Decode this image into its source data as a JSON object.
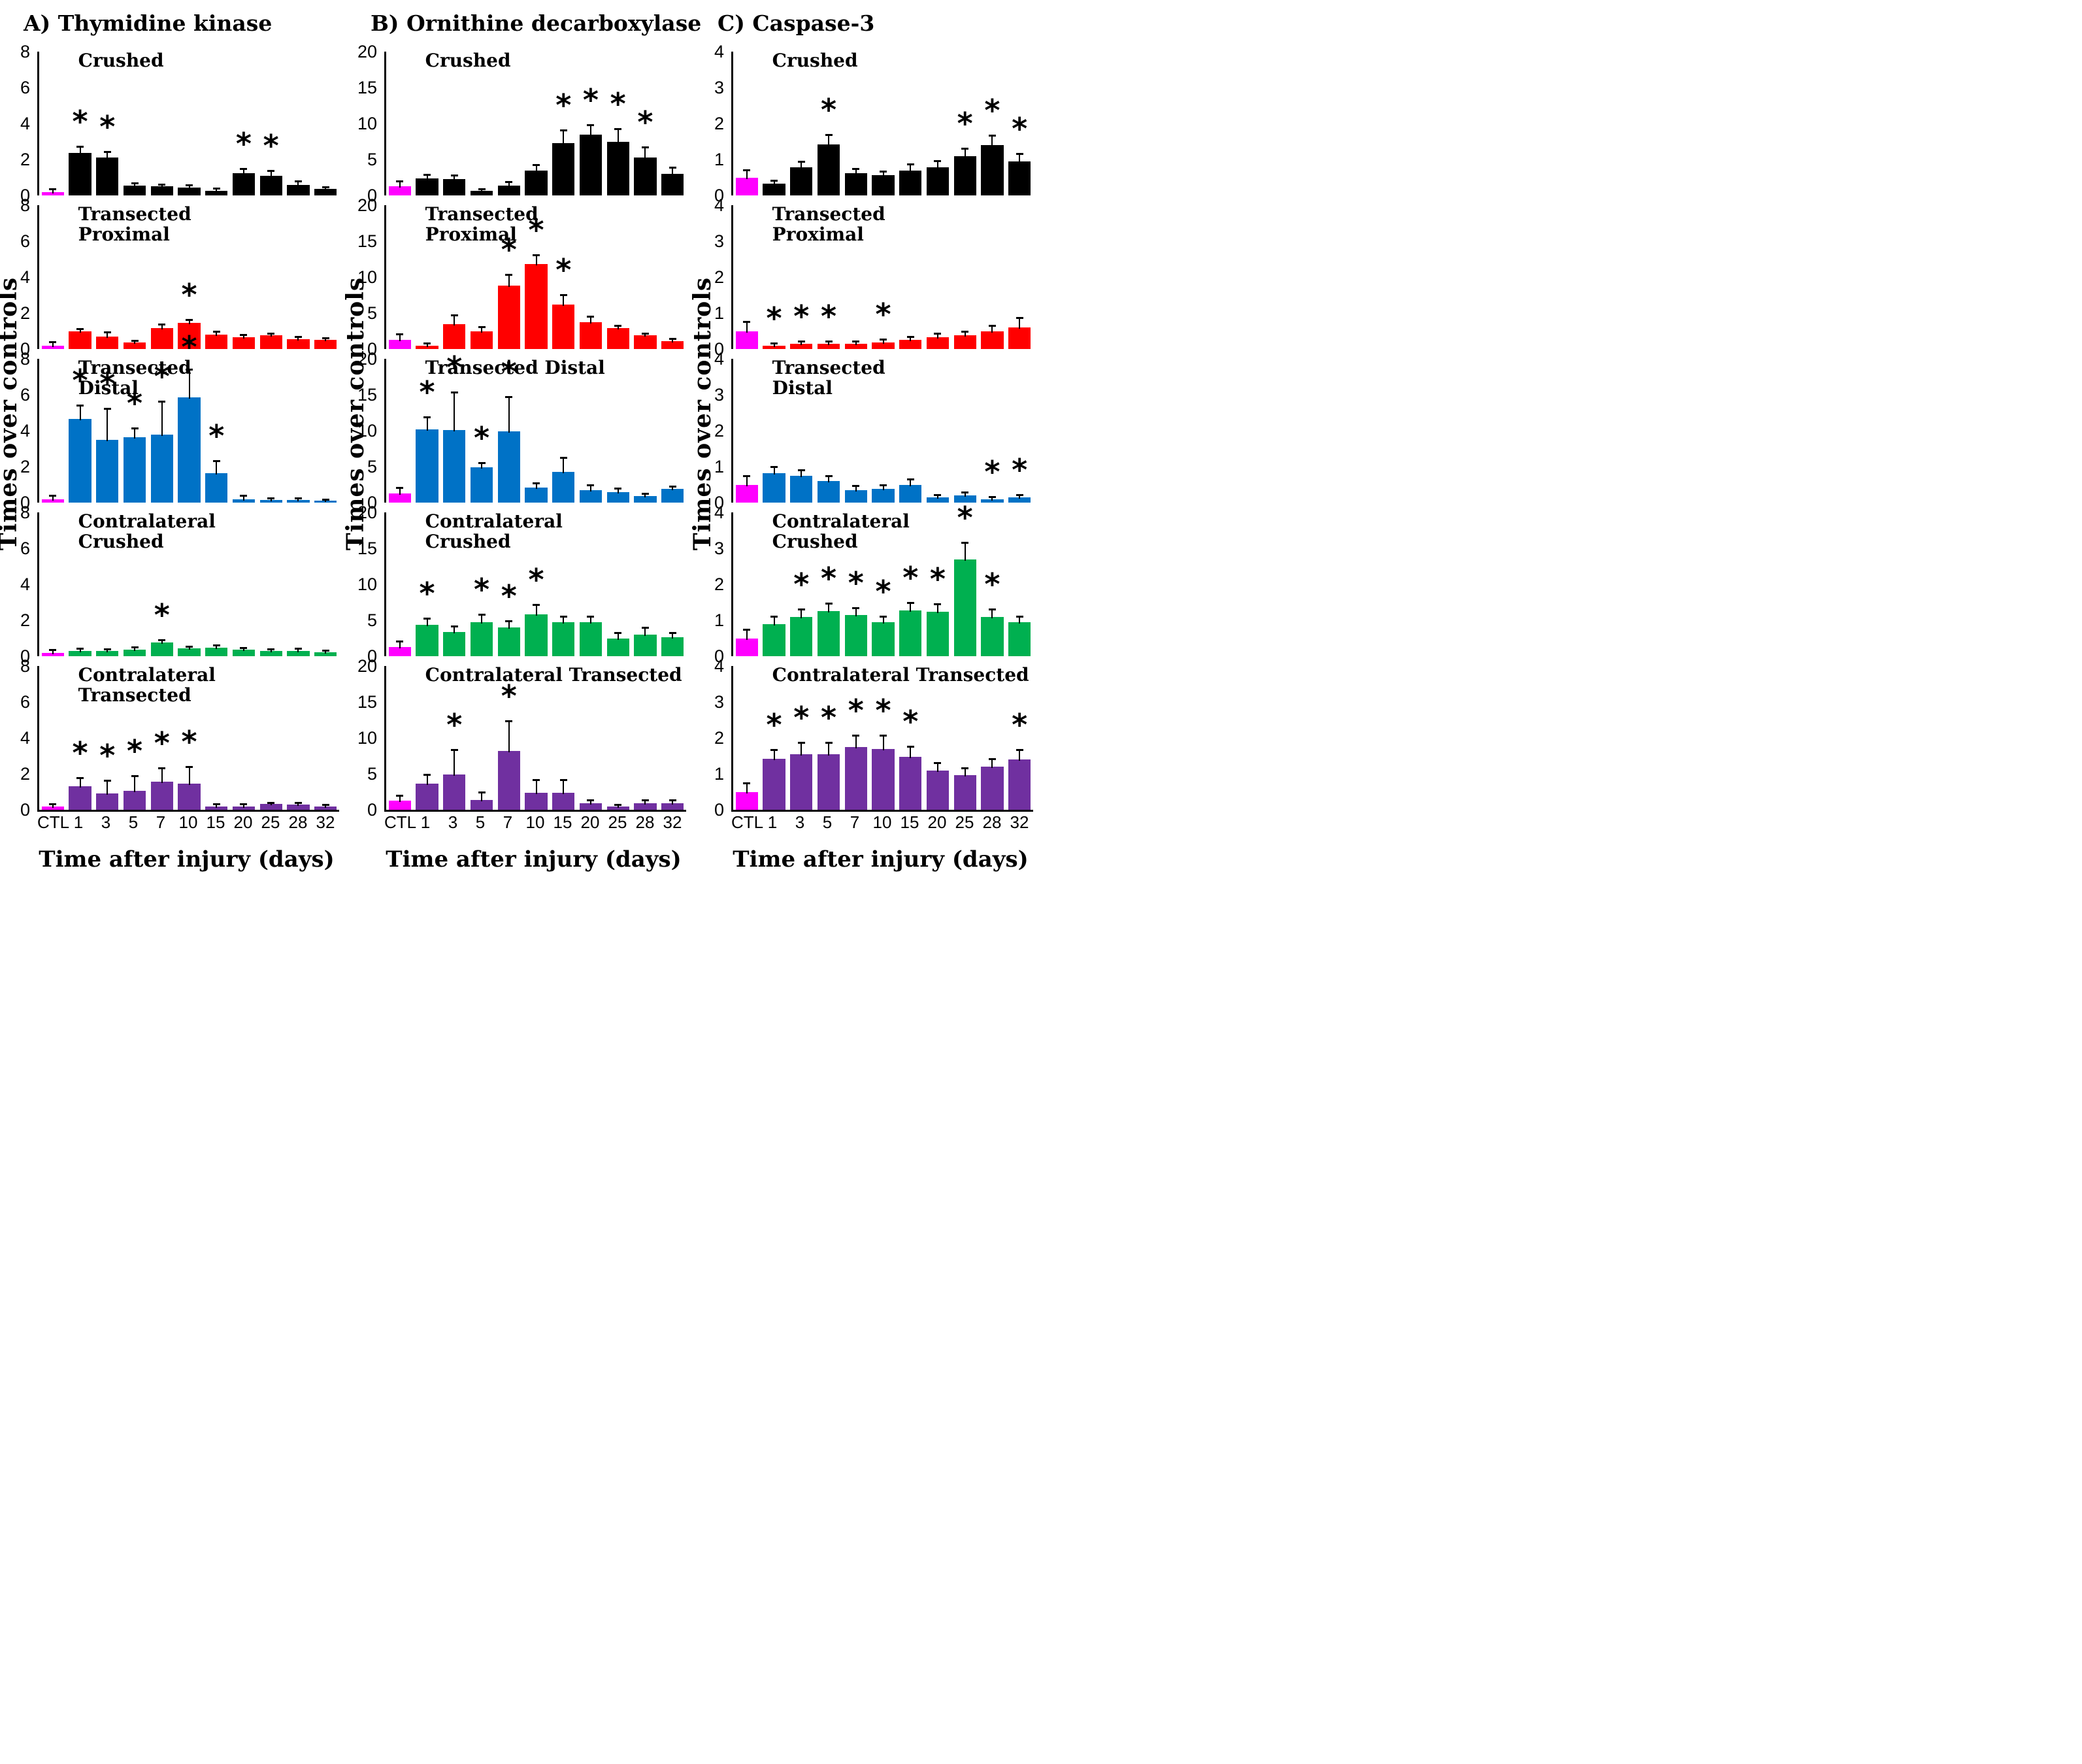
{
  "sig_marker": "*",
  "chart_data": [
    {
      "type": "bar",
      "title": "A) Thymidine kinase",
      "ylabel": "Times over controls",
      "xlabel": "Time after injury (days)",
      "ylim": [
        0,
        8
      ],
      "yticks": [
        8,
        6,
        4,
        2,
        0
      ],
      "categories": [
        "CTL",
        "1",
        "3",
        "5",
        "7",
        "10",
        "15",
        "20",
        "25",
        "28",
        "32"
      ],
      "control_color": "#FF00FF",
      "grid": false,
      "series": [
        {
          "name": "Crushed",
          "title_lines": [
            "Crushed"
          ],
          "color": "#000000",
          "values": [
            0.2,
            2.35,
            2.1,
            0.55,
            0.5,
            0.45,
            0.25,
            1.25,
            1.1,
            0.6,
            0.35
          ],
          "errors": [
            0.12,
            0.35,
            0.3,
            0.12,
            0.1,
            0.1,
            0.1,
            0.2,
            0.25,
            0.15,
            0.1
          ],
          "significant_days": [
            "1",
            "3",
            "20",
            "25"
          ]
        },
        {
          "name": "Transected Proximal",
          "title_lines": [
            "Transected",
            "Proximal"
          ],
          "color": "#FF0000",
          "values": [
            0.2,
            1.0,
            0.7,
            0.35,
            1.15,
            1.45,
            0.8,
            0.65,
            0.75,
            0.55,
            0.5
          ],
          "errors": [
            0.15,
            0.1,
            0.2,
            0.08,
            0.2,
            0.15,
            0.15,
            0.12,
            0.08,
            0.1,
            0.1
          ],
          "significant_days": [
            "10"
          ]
        },
        {
          "name": "Transected Distal",
          "title_lines": [
            "Transected",
            "Distal"
          ],
          "color": "#0072C6",
          "values": [
            0.2,
            4.65,
            3.5,
            3.65,
            3.8,
            5.85,
            1.65,
            0.2,
            0.15,
            0.15,
            0.1
          ],
          "errors": [
            0.15,
            0.75,
            1.7,
            0.45,
            1.8,
            1.55,
            0.65,
            0.15,
            0.08,
            0.07,
            0.05
          ],
          "significant_days": [
            "1",
            "3",
            "5",
            "7",
            "10",
            "15"
          ]
        },
        {
          "name": "Contralateral Crushed",
          "title_lines": [
            "Contralateral",
            "Crushed"
          ],
          "color": "#00B050",
          "values": [
            0.2,
            0.3,
            0.3,
            0.38,
            0.75,
            0.42,
            0.48,
            0.35,
            0.28,
            0.3,
            0.22
          ],
          "errors": [
            0.12,
            0.09,
            0.07,
            0.09,
            0.13,
            0.1,
            0.09,
            0.09,
            0.07,
            0.09,
            0.06
          ],
          "significant_days": [
            "7"
          ]
        },
        {
          "name": "Contralateral Transected",
          "title_lines": [
            "Contralateral",
            "Transected"
          ],
          "color": "#7030A0",
          "values": [
            0.2,
            1.3,
            0.9,
            1.05,
            1.55,
            1.45,
            0.18,
            0.2,
            0.32,
            0.28,
            0.2
          ],
          "errors": [
            0.1,
            0.45,
            0.7,
            0.8,
            0.75,
            0.9,
            0.12,
            0.1,
            0.06,
            0.1,
            0.06
          ],
          "significant_days": [
            "1",
            "3",
            "5",
            "7",
            "10"
          ]
        }
      ]
    },
    {
      "type": "bar",
      "title": "B) Ornithine decarboxylase",
      "ylabel": "Times over controls",
      "xlabel": "Time after injury (days)",
      "ylim": [
        0,
        20
      ],
      "yticks": [
        20,
        15,
        10,
        5,
        0
      ],
      "categories": [
        "CTL",
        "1",
        "3",
        "5",
        "7",
        "10",
        "15",
        "20",
        "25",
        "28",
        "32"
      ],
      "control_color": "#FF00FF",
      "grid": false,
      "series": [
        {
          "name": "Crushed",
          "title_lines": [
            "Crushed"
          ],
          "color": "#000000",
          "values": [
            1.3,
            2.4,
            2.3,
            0.6,
            1.4,
            3.5,
            7.3,
            8.5,
            7.5,
            5.3,
            3.0
          ],
          "errors": [
            0.6,
            0.4,
            0.4,
            0.2,
            0.4,
            0.7,
            1.7,
            1.2,
            1.7,
            1.3,
            0.8
          ],
          "significant_days": [
            "15",
            "20",
            "25",
            "28"
          ]
        },
        {
          "name": "Transected Proximal",
          "title_lines": [
            "Transected",
            "Proximal"
          ],
          "color": "#FF0000",
          "values": [
            1.3,
            0.5,
            3.5,
            2.5,
            8.8,
            11.8,
            6.2,
            3.7,
            2.9,
            1.9,
            1.1
          ],
          "errors": [
            0.7,
            0.2,
            1.1,
            0.5,
            1.5,
            1.2,
            1.3,
            0.8,
            0.3,
            0.2,
            0.3
          ],
          "significant_days": [
            "7",
            "10",
            "15"
          ]
        },
        {
          "name": "Transected Distal",
          "title_lines": [
            "Transected Distal"
          ],
          "color": "#0072C6",
          "values": [
            1.3,
            10.2,
            10.1,
            4.9,
            9.9,
            2.1,
            4.3,
            1.7,
            1.5,
            0.9,
            1.9
          ],
          "errors": [
            0.7,
            1.6,
            5.2,
            0.6,
            4.7,
            0.5,
            1.9,
            0.7,
            0.4,
            0.3,
            0.3
          ],
          "significant_days": [
            "1",
            "3",
            "5",
            "7"
          ]
        },
        {
          "name": "Contralateral Crushed",
          "title_lines": [
            "Contralateral",
            "Crushed"
          ],
          "color": "#00B050",
          "values": [
            1.3,
            4.4,
            3.4,
            4.7,
            4.0,
            5.8,
            4.7,
            4.7,
            2.5,
            3.0,
            2.6
          ],
          "errors": [
            0.7,
            0.8,
            0.7,
            1.0,
            0.8,
            1.3,
            0.8,
            0.8,
            0.7,
            0.9,
            0.6
          ],
          "significant_days": [
            "1",
            "5",
            "7",
            "10"
          ]
        },
        {
          "name": "Contralateral Transected",
          "title_lines": [
            "Contralateral Transected"
          ],
          "color": "#7030A0",
          "values": [
            1.3,
            3.6,
            4.9,
            1.4,
            8.2,
            2.4,
            2.4,
            0.9,
            0.5,
            0.9,
            0.9
          ],
          "errors": [
            0.6,
            1.2,
            3.4,
            1.0,
            4.1,
            1.7,
            1.7,
            0.4,
            0.15,
            0.4,
            0.4
          ],
          "significant_days": [
            "3",
            "7"
          ]
        }
      ]
    },
    {
      "type": "bar",
      "title": "C) Caspase-3",
      "ylabel": "Times over controls",
      "xlabel": "Time after injury (days)",
      "ylim": [
        0,
        4
      ],
      "yticks": [
        4,
        3,
        2,
        1,
        0
      ],
      "categories": [
        "CTL",
        "1",
        "3",
        "5",
        "7",
        "10",
        "15",
        "20",
        "25",
        "28",
        "32"
      ],
      "control_color": "#FF00FF",
      "grid": false,
      "series": [
        {
          "name": "Crushed",
          "title_lines": [
            "Crushed"
          ],
          "color": "#000000",
          "values": [
            0.5,
            0.32,
            0.78,
            1.42,
            0.62,
            0.57,
            0.7,
            0.78,
            1.1,
            1.4,
            0.95
          ],
          "errors": [
            0.2,
            0.08,
            0.15,
            0.26,
            0.1,
            0.08,
            0.15,
            0.17,
            0.2,
            0.25,
            0.2
          ],
          "significant_days": [
            "5",
            "25",
            "28",
            "32"
          ]
        },
        {
          "name": "Transected Proximal",
          "title_lines": [
            "Transected",
            "Proximal"
          ],
          "color": "#FF0000",
          "values": [
            0.5,
            0.1,
            0.15,
            0.15,
            0.15,
            0.18,
            0.25,
            0.32,
            0.38,
            0.5,
            0.6
          ],
          "errors": [
            0.25,
            0.04,
            0.05,
            0.05,
            0.05,
            0.07,
            0.08,
            0.1,
            0.1,
            0.13,
            0.25
          ],
          "significant_days": [
            "1",
            "3",
            "5",
            "10"
          ]
        },
        {
          "name": "Transected Distal",
          "title_lines": [
            "Transected",
            "Distal"
          ],
          "color": "#0072C6",
          "values": [
            0.5,
            0.82,
            0.75,
            0.6,
            0.35,
            0.38,
            0.5,
            0.15,
            0.2,
            0.1,
            0.15
          ],
          "errors": [
            0.22,
            0.16,
            0.15,
            0.13,
            0.1,
            0.09,
            0.13,
            0.05,
            0.07,
            0.05,
            0.05
          ],
          "significant_days": [
            "28",
            "32"
          ]
        },
        {
          "name": "Contralateral Crushed",
          "title_lines": [
            "Contralateral",
            "Crushed"
          ],
          "color": "#00B050",
          "values": [
            0.5,
            0.9,
            1.1,
            1.25,
            1.15,
            0.95,
            1.27,
            1.23,
            2.7,
            1.1,
            0.95
          ],
          "errors": [
            0.22,
            0.2,
            0.2,
            0.2,
            0.18,
            0.15,
            0.21,
            0.2,
            0.45,
            0.2,
            0.15
          ],
          "significant_days": [
            "3",
            "5",
            "7",
            "10",
            "15",
            "20",
            "25",
            "28"
          ]
        },
        {
          "name": "Contralateral Transected",
          "title_lines": [
            "Contralateral Transected"
          ],
          "color": "#7030A0",
          "values": [
            0.5,
            1.42,
            1.55,
            1.55,
            1.75,
            1.7,
            1.48,
            1.1,
            0.97,
            1.2,
            1.4
          ],
          "errors": [
            0.22,
            0.23,
            0.3,
            0.3,
            0.3,
            0.35,
            0.27,
            0.2,
            0.18,
            0.2,
            0.25
          ],
          "significant_days": [
            "1",
            "3",
            "5",
            "7",
            "10",
            "15",
            "32"
          ]
        }
      ]
    }
  ]
}
